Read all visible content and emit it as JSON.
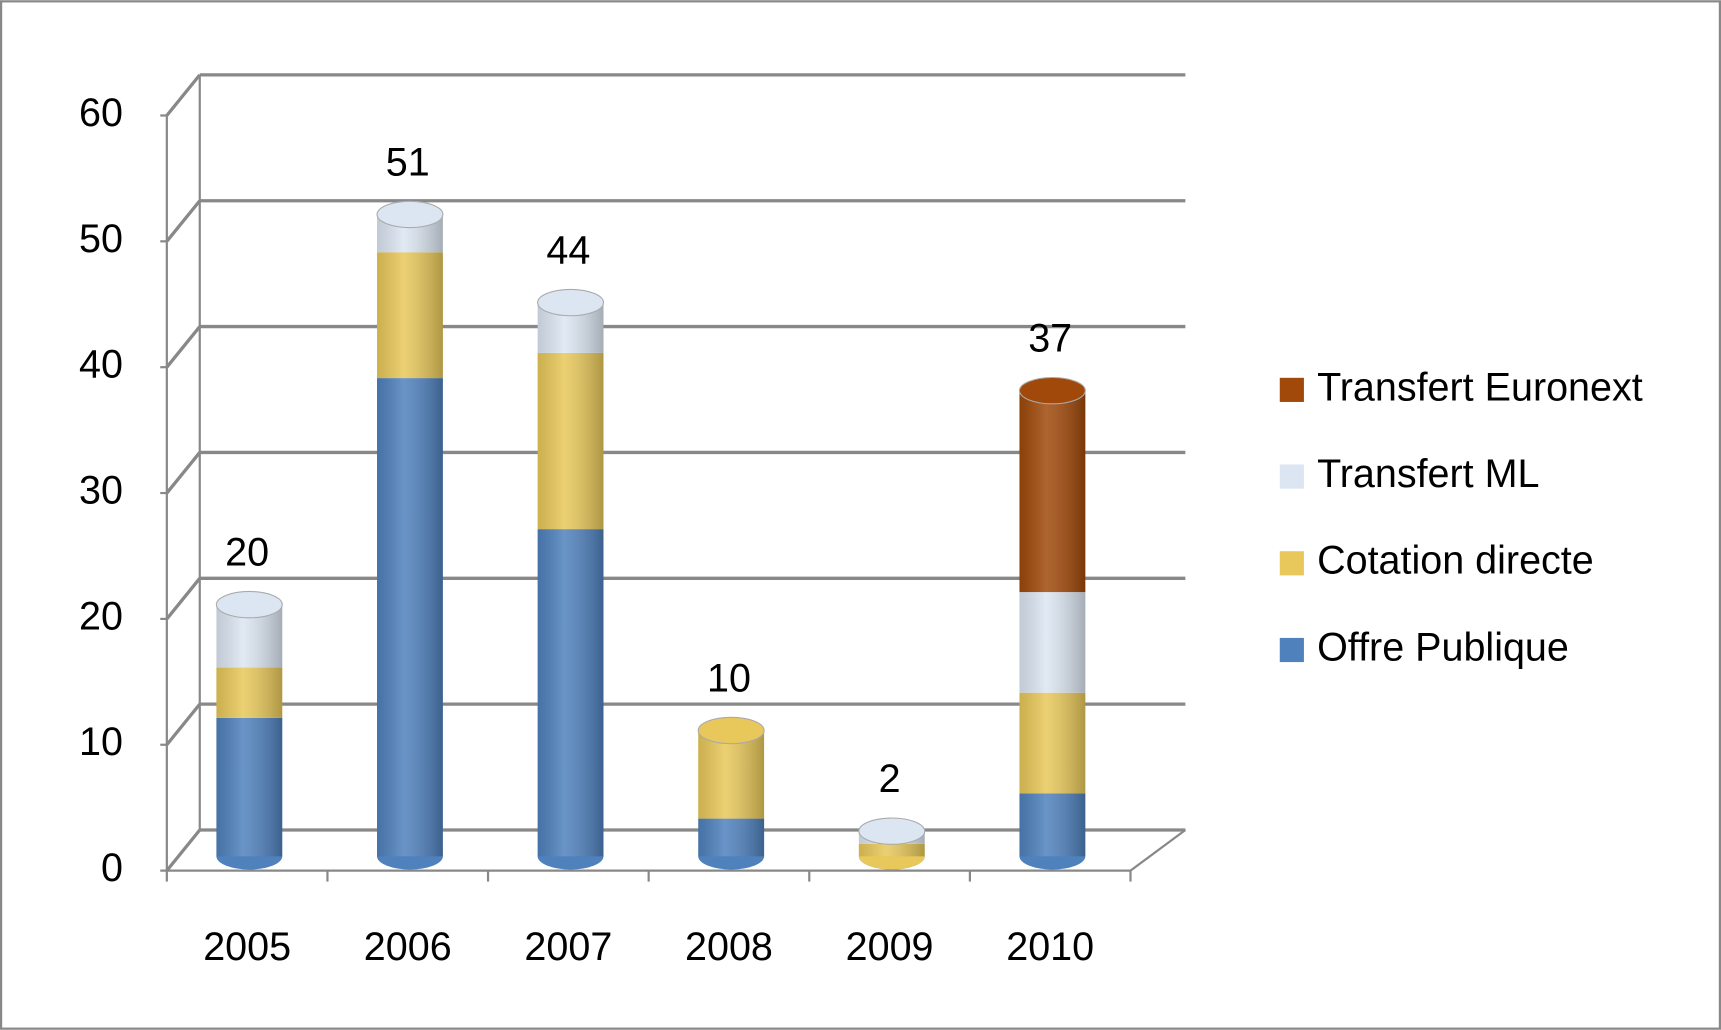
{
  "chart_data": {
    "type": "bar3d_stacked",
    "categories": [
      "2005",
      "2006",
      "2007",
      "2008",
      "2009",
      "2010"
    ],
    "series": [
      {
        "name": "Offre Publique",
        "color": "#4f81bd",
        "values": [
          11,
          38,
          26,
          3,
          0,
          5
        ]
      },
      {
        "name": "Cotation directe",
        "color": "#e8c85a",
        "values": [
          4,
          10,
          14,
          7,
          1,
          8
        ]
      },
      {
        "name": "Transfert ML",
        "color": "#dce6f2",
        "values": [
          5,
          3,
          4,
          0,
          1,
          8
        ]
      },
      {
        "name": "Transfert Euronext",
        "color": "#a0490a",
        "values": [
          0,
          0,
          0,
          0,
          0,
          16
        ]
      }
    ],
    "totals": [
      20,
      51,
      44,
      10,
      2,
      37
    ],
    "ylim": [
      0,
      60
    ],
    "yticks": [
      0,
      10,
      20,
      30,
      40,
      50,
      60
    ],
    "grid": true,
    "legend": "right"
  }
}
